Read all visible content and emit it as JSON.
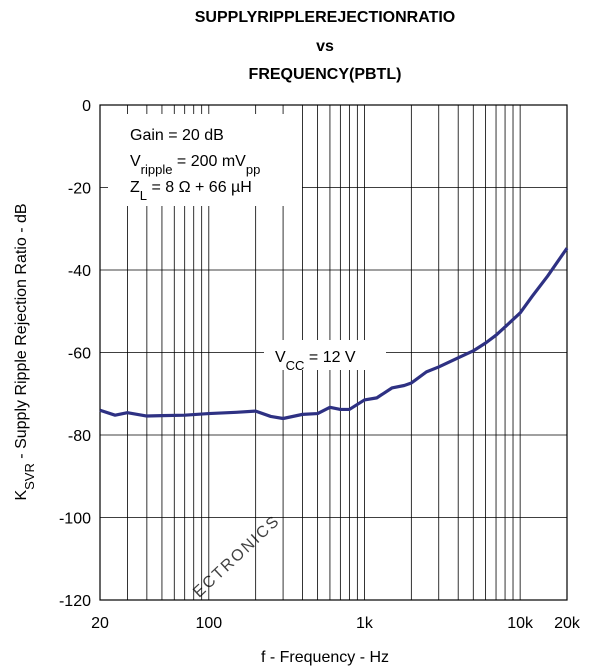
{
  "chart_data": {
    "type": "line",
    "title": [
      "SUPPLYRIPPLEREJECTIONRATIO",
      "vs",
      "FREQUENCY(PBTL)"
    ],
    "xlabel": "f - Frequency - Hz",
    "ylabel": [
      "K",
      "SVR",
      " - Supply Ripple Rejection Ratio - dB"
    ],
    "annotations": [
      [
        "Gain = 20 dB"
      ],
      [
        "V",
        "ripple",
        " = 200 mV",
        "pp"
      ],
      [
        "Z",
        "L",
        " = 8 Ω + 66 µH"
      ],
      [
        "V",
        "CC",
        " = 12 V"
      ]
    ],
    "watermark": "ECTRONICS",
    "x": [
      20,
      25,
      30,
      40,
      50,
      70,
      100,
      150,
      200,
      250,
      300,
      400,
      500,
      600,
      700,
      800,
      1000,
      1200,
      1500,
      1800,
      2000,
      2500,
      3000,
      4000,
      5000,
      6000,
      7000,
      8000,
      10000,
      12000,
      15000,
      20000
    ],
    "series": [
      {
        "color": "#2e3183",
        "values": [
          -74,
          -75.2,
          -74.6,
          -75.4,
          -75.3,
          -75.2,
          -74.8,
          -74.5,
          -74.2,
          -75.5,
          -76,
          -75,
          -74.8,
          -73.3,
          -73.8,
          -73.8,
          -71.5,
          -71,
          -68.6,
          -68,
          -67.4,
          -64.7,
          -63.5,
          -61.3,
          -59.6,
          -57.7,
          -55.8,
          -53.8,
          -50.4,
          -46.3,
          -41.5,
          -34.7
        ]
      }
    ],
    "xscale": "log",
    "xlim": [
      20,
      20000
    ],
    "xticks": [
      20,
      100,
      {
        "value": 1000,
        "label": "1k"
      },
      {
        "value": 10000,
        "label": "10k"
      },
      {
        "value": 20000,
        "label": "20k"
      }
    ],
    "x_minor_ticks": [
      30,
      40,
      50,
      60,
      70,
      80,
      90,
      200,
      300,
      400,
      500,
      600,
      700,
      800,
      900,
      2000,
      3000,
      4000,
      5000,
      6000,
      7000,
      8000,
      9000
    ],
    "ylim": [
      -120,
      0
    ],
    "yticks": [
      -120,
      -100,
      -80,
      -60,
      -40,
      -20,
      0
    ],
    "grid": true
  }
}
